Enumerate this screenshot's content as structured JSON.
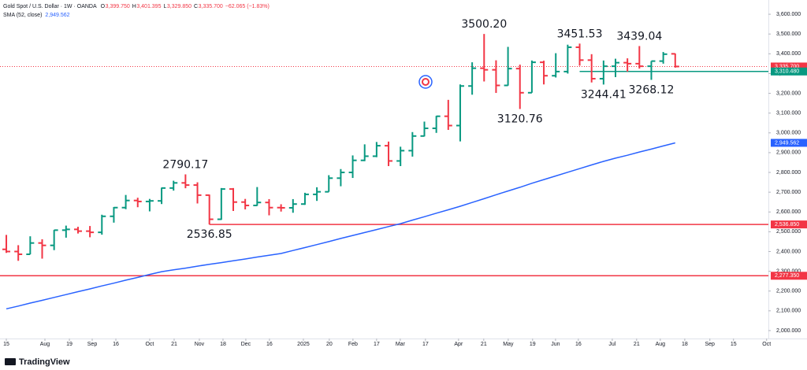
{
  "chart_data": {
    "type": "ohlc",
    "header": {
      "symbol": "Gold Spot / U.S. Dollar · 1W · OANDA",
      "fields": [
        {
          "key": "O",
          "value": "3,399.750"
        },
        {
          "key": "H",
          "value": "3,401.395"
        },
        {
          "key": "L",
          "value": "3,329.850"
        },
        {
          "key": "C",
          "value": "3,335.700"
        }
      ],
      "change": "−62.065 (−1.83%)",
      "study": "SMA (52, close)",
      "study_value": "2,949.562"
    },
    "up_color": "#089981",
    "down_color": "#f23645",
    "open": [
      2411,
      2400,
      2386,
      2443,
      2431,
      2508,
      2512,
      2503,
      2497,
      2578,
      2622,
      2658,
      2653,
      2656,
      2721,
      2747,
      2736,
      2685,
      2563,
      2716,
      2650,
      2633,
      2648,
      2622,
      2621,
      2640,
      2689,
      2702,
      2771,
      2800,
      2861,
      2882,
      2935,
      2858,
      2910,
      2984,
      3023,
      3084,
      3037,
      3237,
      3327,
      3319,
      3240,
      3325,
      3203,
      3357,
      3289,
      3310,
      3433,
      3368,
      3274,
      3337,
      3355,
      3350,
      3337,
      3363,
      3399.75
    ],
    "high": [
      2484,
      2432,
      2477,
      2462,
      2509,
      2531,
      2525,
      2529,
      2586,
      2625,
      2686,
      2672,
      2666,
      2723,
      2758,
      2790.17,
      2750,
      2688,
      2721,
      2721,
      2666,
      2726,
      2665,
      2639,
      2665,
      2697,
      2725,
      2786,
      2817,
      2886,
      2942,
      2954,
      2956,
      2930,
      3004,
      3057,
      3086,
      3167,
      3245,
      3357,
      3500.2,
      3367,
      3435,
      3345,
      3366,
      3365,
      3403,
      3446,
      3451.53,
      3398,
      3366,
      3375,
      3377,
      3439.04,
      3363,
      3409,
      3401.395
    ],
    "low": [
      2393,
      2353,
      2386,
      2364,
      2407,
      2470,
      2491,
      2472,
      2485,
      2546,
      2614,
      2624,
      2603,
      2640,
      2708,
      2720,
      2643,
      2536.85,
      2560,
      2605,
      2613,
      2631,
      2583,
      2602,
      2596,
      2636,
      2656,
      2702,
      2730,
      2772,
      2857,
      2877,
      2832,
      2832,
      2880,
      2982,
      3000,
      3015,
      2957,
      3193,
      3260,
      3202,
      3239,
      3120.76,
      3203,
      3245,
      3280,
      3300,
      3340,
      3255,
      3244.41,
      3282,
      3310,
      3325,
      3268.12,
      3350,
      3329.85
    ],
    "close": [
      2400,
      2386,
      2443,
      2431,
      2508,
      2512,
      2503,
      2497,
      2578,
      2622,
      2658,
      2653,
      2656,
      2721,
      2747,
      2736,
      2685,
      2563,
      2716,
      2650,
      2633,
      2648,
      2622,
      2621,
      2640,
      2689,
      2702,
      2771,
      2800,
      2861,
      2882,
      2935,
      2858,
      2910,
      2984,
      3023,
      3084,
      3037,
      3237,
      3327,
      3319,
      3240,
      3325,
      3203,
      3357,
      3289,
      3310,
      3433,
      3368,
      3274,
      3337,
      3355,
      3350,
      3337,
      3363,
      3398,
      3335.7
    ],
    "sma": {
      "color": "#2962ff",
      "label": "2,949.562",
      "values": [
        2110,
        2124,
        2139,
        2153,
        2168,
        2182,
        2197,
        2211,
        2226,
        2240,
        2255,
        2269,
        2284,
        2298,
        2307,
        2316,
        2326,
        2335,
        2344,
        2353,
        2362,
        2372,
        2381,
        2390,
        2405,
        2420,
        2435,
        2450,
        2466,
        2481,
        2496,
        2511,
        2526,
        2541,
        2559,
        2576,
        2594,
        2611,
        2629,
        2648,
        2667,
        2687,
        2706,
        2725,
        2745,
        2764,
        2782,
        2801,
        2819,
        2838,
        2856,
        2872,
        2887,
        2903,
        2918,
        2934,
        2949.56
      ]
    },
    "price_lines": [
      {
        "value": 3335.7,
        "label": "3,335.700",
        "color": "#f23645",
        "style": "dotted"
      },
      {
        "value": 3310.48,
        "label": "3,310.480",
        "color": "#089981",
        "style": "solid",
        "from": 48
      },
      {
        "value": 2536.85,
        "label": "2,536.850",
        "color": "#f23645",
        "style": "solid",
        "from": 17
      },
      {
        "value": 2277.35,
        "label": "2,277.350",
        "color": "#f23645",
        "style": "solid"
      }
    ],
    "annotations": [
      {
        "value": 3500.2,
        "label": "3500.20",
        "bar": 40,
        "side": "high"
      },
      {
        "value": 3451.53,
        "label": "3451.53",
        "bar": 48,
        "side": "high"
      },
      {
        "value": 3439.04,
        "label": "3439.04",
        "bar": 53,
        "side": "high"
      },
      {
        "value": 3120.76,
        "label": "3120.76",
        "bar": 43,
        "side": "low"
      },
      {
        "value": 3244.41,
        "label": "3244.41",
        "bar": 50,
        "side": "low"
      },
      {
        "value": 3268.12,
        "label": "3268.12",
        "bar": 54,
        "side": "low"
      },
      {
        "value": 2790.17,
        "label": "2790.17",
        "bar": 15,
        "side": "high"
      },
      {
        "value": 2536.85,
        "label": "2536.85",
        "bar": 17,
        "side": "low"
      }
    ],
    "ylim": [
      1960,
      3672
    ],
    "yticks": [
      {
        "value": 2000,
        "label": "2,000.000"
      },
      {
        "value": 2100,
        "label": "2,100.000"
      },
      {
        "value": 2200,
        "label": "2,200.000"
      },
      {
        "value": 2300,
        "label": "2,300.000"
      },
      {
        "value": 2400,
        "label": "2,400.000"
      },
      {
        "value": 2500,
        "label": "2,500.000"
      },
      {
        "value": 2600,
        "label": "2,600.000"
      },
      {
        "value": 2700,
        "label": "2,700.000"
      },
      {
        "value": 2800,
        "label": "2,800.000"
      },
      {
        "value": 2900,
        "label": "2,900.000"
      },
      {
        "value": 3000,
        "label": "3,000.000"
      },
      {
        "value": 3100,
        "label": "3,100.000"
      },
      {
        "value": 3200,
        "label": "3,200.000"
      },
      {
        "value": 3300,
        "label": "3,300.000"
      },
      {
        "value": 3400,
        "label": "3,400.000"
      },
      {
        "value": 3500,
        "label": "3,500.000"
      },
      {
        "value": 3600,
        "label": "3,600.000"
      }
    ],
    "xlim": [
      -0.53,
      63.8
    ],
    "xticks": [
      {
        "value": 0,
        "label": "15"
      },
      {
        "value": 3.23,
        "label": "Aug"
      },
      {
        "value": 5.28,
        "label": "19"
      },
      {
        "value": 7.19,
        "label": "Sep"
      },
      {
        "value": 9.17,
        "label": "16"
      },
      {
        "value": 12,
        "label": "Oct"
      },
      {
        "value": 14.05,
        "label": "21"
      },
      {
        "value": 16.16,
        "label": "Nov"
      },
      {
        "value": 18.14,
        "label": "18"
      },
      {
        "value": 20.05,
        "label": "Dec"
      },
      {
        "value": 22.03,
        "label": "16"
      },
      {
        "value": 24.87,
        "label": "2025"
      },
      {
        "value": 27.04,
        "label": "20"
      },
      {
        "value": 29.02,
        "label": "Feb"
      },
      {
        "value": 31,
        "label": "17"
      },
      {
        "value": 32.98,
        "label": "Mar"
      },
      {
        "value": 35.09,
        "label": "17"
      },
      {
        "value": 37.86,
        "label": "Apr"
      },
      {
        "value": 39.97,
        "label": "21"
      },
      {
        "value": 42.02,
        "label": "May"
      },
      {
        "value": 44.06,
        "label": "19"
      },
      {
        "value": 45.98,
        "label": "Jun"
      },
      {
        "value": 47.89,
        "label": "16"
      },
      {
        "value": 50.73,
        "label": "Jul"
      },
      {
        "value": 52.77,
        "label": "21"
      },
      {
        "value": 54.75,
        "label": "Aug"
      },
      {
        "value": 56.8,
        "label": "18"
      },
      {
        "value": 58.9,
        "label": "Sep"
      },
      {
        "value": 60.88,
        "label": "15"
      },
      {
        "value": 63.65,
        "label": "Oct"
      }
    ],
    "brand": "TradingView"
  }
}
